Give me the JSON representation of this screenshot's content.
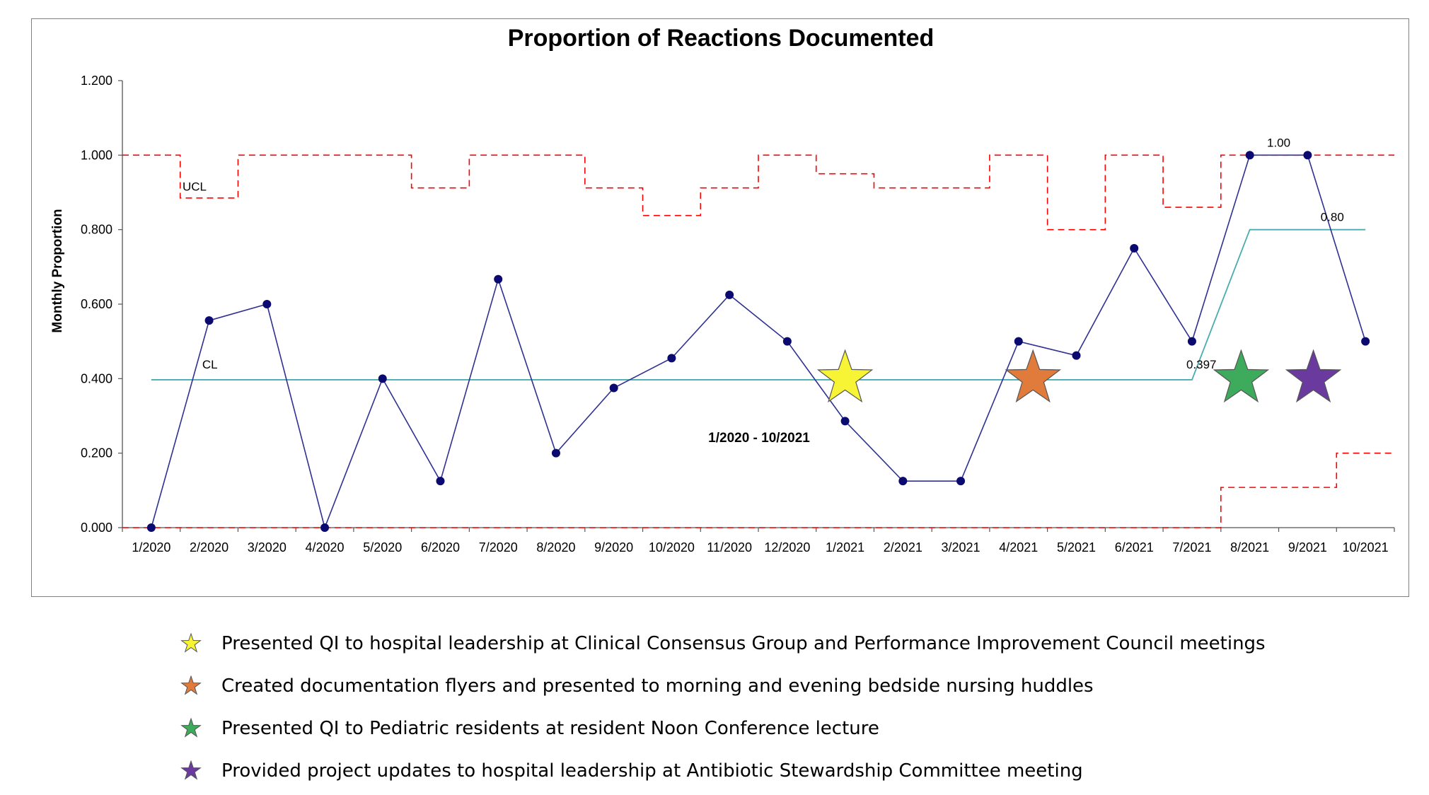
{
  "chart_data": {
    "type": "line",
    "title": "Proportion of Reactions Documented",
    "xlabel": "1/2020  -  10/2021",
    "ylabel": "Monthly Proportion",
    "ylim": [
      0,
      1.2
    ],
    "yticks": [
      "0.000",
      "0.200",
      "0.400",
      "0.600",
      "0.800",
      "1.000",
      "1.200"
    ],
    "categories": [
      "1/2020",
      "2/2020",
      "3/2020",
      "4/2020",
      "5/2020",
      "6/2020",
      "7/2020",
      "8/2020",
      "9/2020",
      "10/2020",
      "11/2020",
      "12/2020",
      "1/2021",
      "2/2021",
      "3/2021",
      "4/2021",
      "5/2021",
      "6/2021",
      "7/2021",
      "8/2021",
      "9/2021",
      "10/2021"
    ],
    "series": [
      {
        "name": "",
        "color": "#2e3192",
        "values": [
          0.0,
          0.556,
          0.6,
          0.0,
          0.4,
          0.125,
          0.667,
          0.2,
          0.375,
          0.455,
          0.625,
          0.5,
          0.286,
          0.125,
          0.125,
          0.5,
          0.462,
          0.75,
          0.5,
          1.0,
          1.0,
          0.5
        ]
      }
    ],
    "center_line": {
      "label": "CL",
      "color": "#4aacae",
      "phase1_value": 0.397,
      "phase1_label": "0.397",
      "phase2_value": 0.8,
      "phase2_label": "0.80"
    },
    "ucl": {
      "label": "UCL",
      "color": "#ff0000",
      "values": [
        1.0,
        0.885,
        1.0,
        1.0,
        1.0,
        0.912,
        1.0,
        1.0,
        0.912,
        0.838,
        0.912,
        1.0,
        0.95,
        0.912,
        0.912,
        1.0,
        0.8,
        1.0,
        0.86,
        1.0,
        1.0,
        1.0
      ]
    },
    "lcl": {
      "color": "#ff0000",
      "values": [
        0,
        0,
        0,
        0,
        0,
        0,
        0,
        0,
        0,
        0,
        0,
        0,
        0,
        0,
        0,
        0,
        0,
        0,
        0,
        0.108,
        0.108,
        0.2
      ]
    },
    "annotations": [
      {
        "text": "1.00",
        "category": "8/2021"
      },
      {
        "text": "0.80",
        "category": "9/2021"
      },
      {
        "text": "0.397",
        "category": "7/2021"
      }
    ],
    "markers": [
      {
        "color": "#f7f436",
        "x": 12.5,
        "y": 0.4
      },
      {
        "color": "#e07b3c",
        "x": 15.75,
        "y": 0.4
      },
      {
        "color": "#3daa5c",
        "x": 19.35,
        "y": 0.4
      },
      {
        "color": "#6a3a9e",
        "x": 20.6,
        "y": 0.4
      }
    ]
  },
  "legend": [
    {
      "color": "#f7f436",
      "icon": "star-icon",
      "text": "Presented QI to hospital leadership at Clinical Consensus Group and Performance Improvement Council meetings"
    },
    {
      "color": "#e07b3c",
      "icon": "star-icon",
      "text": "Created documentation flyers and presented to morning and evening bedside nursing huddles"
    },
    {
      "color": "#3daa5c",
      "icon": "star-icon",
      "text": "Presented QI to Pediatric residents at resident Noon Conference lecture"
    },
    {
      "color": "#6a3a9e",
      "icon": "star-icon",
      "text": "Provided project updates to hospital leadership at Antibiotic Stewardship Committee meeting"
    }
  ]
}
